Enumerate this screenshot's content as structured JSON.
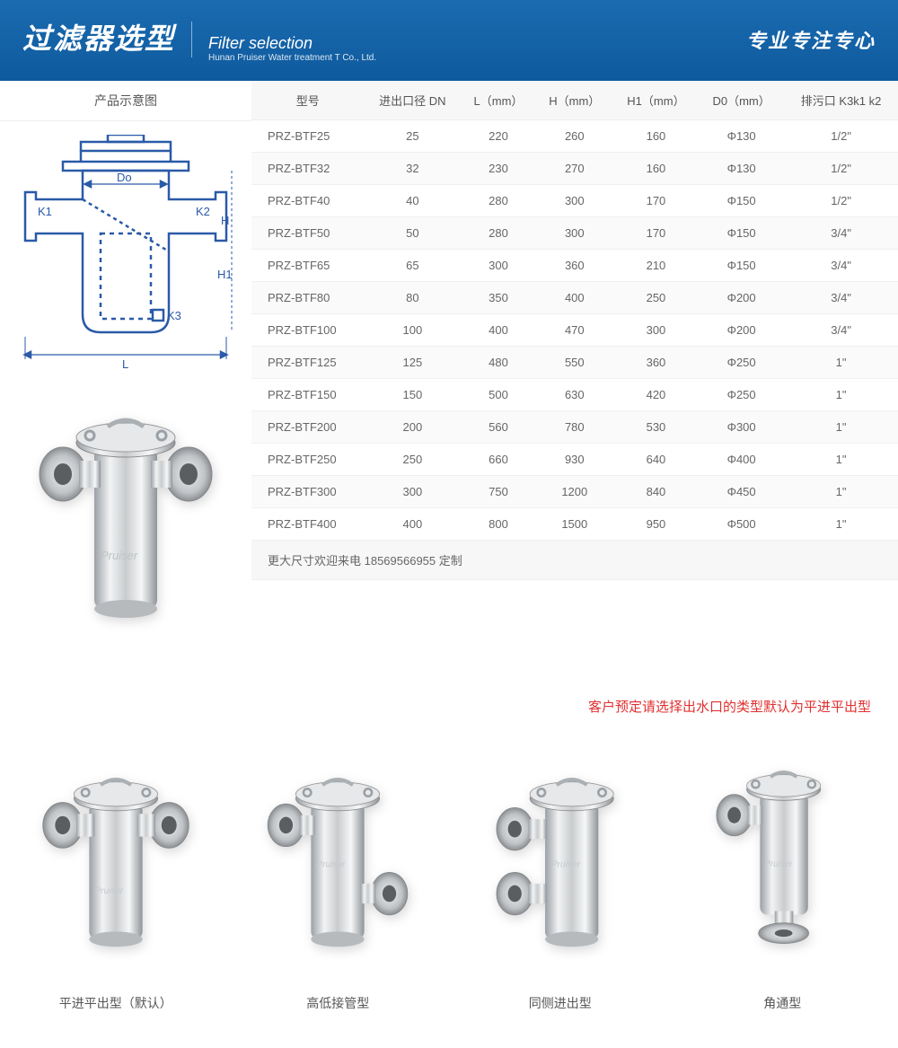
{
  "header": {
    "title_cn": "过滤器选型",
    "title_en": "Filter selection",
    "subtitle_en": "Hunan Pruiser Water treatment T Co., Ltd.",
    "slogan": "专业专注专心"
  },
  "diagram_title": "产品示意图",
  "diagram_labels": {
    "do": "Do",
    "k1": "K1",
    "k2": "K2",
    "k3": "K3",
    "h": "H",
    "h1": "H1",
    "l": "L"
  },
  "table": {
    "columns": [
      "型号",
      "进出口径 DN",
      "L（mm）",
      "H（mm）",
      "H1（mm）",
      "D0（mm）",
      "排污口 K3k1  k2"
    ],
    "rows": [
      [
        "PRZ-BTF25",
        "25",
        "220",
        "260",
        "160",
        "Φ130",
        "1/2\""
      ],
      [
        "PRZ-BTF32",
        "32",
        "230",
        "270",
        "160",
        "Φ130",
        "1/2\""
      ],
      [
        "PRZ-BTF40",
        "40",
        "280",
        "300",
        "170",
        "Φ150",
        "1/2\""
      ],
      [
        "PRZ-BTF50",
        "50",
        "280",
        "300",
        "170",
        "Φ150",
        "3/4\""
      ],
      [
        "PRZ-BTF65",
        "65",
        "300",
        "360",
        "210",
        "Φ150",
        "3/4\""
      ],
      [
        "PRZ-BTF80",
        "80",
        "350",
        "400",
        "250",
        "Φ200",
        "3/4\""
      ],
      [
        "PRZ-BTF100",
        "100",
        "400",
        "470",
        "300",
        "Φ200",
        "3/4\""
      ],
      [
        "PRZ-BTF125",
        "125",
        "480",
        "550",
        "360",
        "Φ250",
        "1\""
      ],
      [
        "PRZ-BTF150",
        "150",
        "500",
        "630",
        "420",
        "Φ250",
        "1\""
      ],
      [
        "PRZ-BTF200",
        "200",
        "560",
        "780",
        "530",
        "Φ300",
        "1\""
      ],
      [
        "PRZ-BTF250",
        "250",
        "660",
        "930",
        "640",
        "Φ400",
        "1\""
      ],
      [
        "PRZ-BTF300",
        "300",
        "750",
        "1200",
        "840",
        "Φ450",
        "1\""
      ],
      [
        "PRZ-BTF400",
        "400",
        "800",
        "1500",
        "950",
        "Φ500",
        "1\""
      ]
    ],
    "footer_text": "更大尺寸欢迎来电 18569566955 定制"
  },
  "notice": "客户预定请选择出水口的类型默认为平进平出型",
  "variants": [
    {
      "label": "平进平出型（默认）"
    },
    {
      "label": "高低接管型"
    },
    {
      "label": "同侧进出型"
    },
    {
      "label": "角通型"
    }
  ],
  "watermark": "Pruiser",
  "colors": {
    "header_grad_top": "#1a6bb0",
    "header_grad_bottom": "#0f5a9e",
    "notice": "#e03030",
    "table_header_bg": "#f7f7f7",
    "row_alt_bg": "#fafafa",
    "text": "#555555"
  }
}
